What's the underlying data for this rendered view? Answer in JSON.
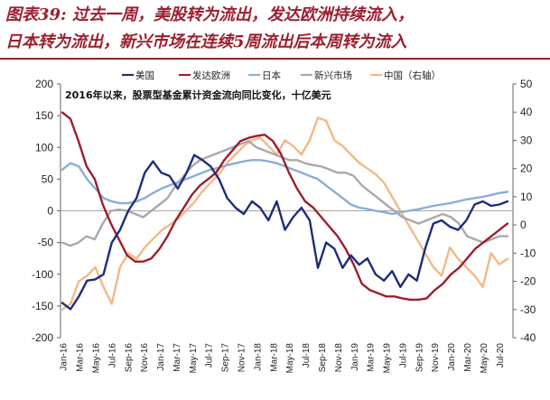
{
  "title": {
    "line1": "图表39: 过去一周，美股转为流出，发达欧洲持续流入，",
    "line2": "日本转为流出，新兴市场在连续5周流出后本周转为流入"
  },
  "colors": {
    "us": "#1f2d7a",
    "dev_europe": "#9c1f2e",
    "japan": "#8aaed4",
    "em": "#a9a9a9",
    "china": "#f4b885",
    "title": "#9c1f2e"
  },
  "chart_data": {
    "type": "line",
    "annotation": "2016年以来，股票型基金累计资金流向同比变化，十亿美元",
    "x_tick_labels": [
      "Jan-16",
      "Mar-16",
      "May-16",
      "Jul-16",
      "Sep-16",
      "Nov-16",
      "Jan-17",
      "Mar-17",
      "May-17",
      "Jul-17",
      "Sep-17",
      "Nov-17",
      "Jan-18",
      "Mar-18",
      "May-18",
      "Jul-18",
      "Sep-18",
      "Nov-18",
      "Jan-19",
      "Mar-19",
      "May-19",
      "Jul-19",
      "Sep-19",
      "Nov-19",
      "Jan-20",
      "Mar-20",
      "May-20",
      "Jul-20"
    ],
    "y_left": {
      "ylim": [
        -200,
        200
      ],
      "ticks": [
        200,
        150,
        100,
        50,
        0,
        -50,
        -100,
        -150,
        -200
      ]
    },
    "y_right": {
      "ylim": [
        -40,
        50
      ],
      "ticks": [
        50,
        40,
        30,
        20,
        10,
        0,
        -10,
        -20,
        -30,
        -40
      ]
    },
    "grid": false,
    "legend_position": "top",
    "series": [
      {
        "name": "美国",
        "axis": "left",
        "color": "#1f2d7a",
        "values": [
          -145,
          -155,
          -135,
          -110,
          -108,
          -100,
          -50,
          -30,
          0,
          20,
          60,
          78,
          60,
          55,
          35,
          58,
          88,
          80,
          70,
          50,
          20,
          5,
          -5,
          15,
          5,
          -15,
          15,
          -30,
          -10,
          5,
          -15,
          -90,
          -50,
          -60,
          -90,
          -70,
          -85,
          -75,
          -100,
          -110,
          -95,
          -120,
          -100,
          -110,
          -60,
          -20,
          -15,
          -25,
          -30,
          -15,
          10,
          15,
          8,
          10,
          15
        ]
      },
      {
        "name": "发达欧洲",
        "axis": "left",
        "color": "#9c1f2e",
        "values": [
          155,
          145,
          110,
          70,
          50,
          10,
          -20,
          -45,
          -70,
          -80,
          -80,
          -75,
          -60,
          -40,
          -15,
          5,
          25,
          40,
          50,
          60,
          80,
          95,
          110,
          115,
          118,
          120,
          110,
          90,
          60,
          35,
          15,
          5,
          -10,
          -25,
          -40,
          -60,
          -85,
          -115,
          -125,
          -130,
          -135,
          -135,
          -138,
          -140,
          -140,
          -138,
          -125,
          -115,
          -100,
          -90,
          -75,
          -60,
          -50,
          -40,
          -30,
          -20
        ]
      },
      {
        "name": "日本",
        "axis": "left",
        "color": "#8aaed4",
        "values": [
          65,
          75,
          70,
          50,
          35,
          20,
          15,
          12,
          12,
          15,
          20,
          28,
          35,
          40,
          45,
          50,
          55,
          60,
          65,
          68,
          72,
          75,
          78,
          80,
          80,
          78,
          75,
          70,
          65,
          60,
          55,
          50,
          40,
          30,
          20,
          10,
          5,
          3,
          0,
          -2,
          -5,
          -2,
          0,
          2,
          5,
          8,
          10,
          12,
          15,
          18,
          20,
          22,
          25,
          28,
          30
        ]
      },
      {
        "name": "新兴市场",
        "axis": "left",
        "color": "#a9a9a9",
        "values": [
          -50,
          -55,
          -50,
          -40,
          -45,
          -20,
          0,
          2,
          0,
          -5,
          -10,
          0,
          10,
          20,
          40,
          55,
          70,
          80,
          85,
          90,
          95,
          100,
          105,
          110,
          100,
          95,
          90,
          85,
          80,
          80,
          75,
          72,
          70,
          65,
          60,
          60,
          55,
          40,
          30,
          20,
          10,
          0,
          -10,
          -15,
          -20,
          -15,
          -10,
          -5,
          -10,
          -20,
          -40,
          -45,
          -50,
          -45,
          -40,
          -40
        ]
      },
      {
        "name": "中国（右轴）",
        "axis": "right",
        "color": "#f4b885",
        "values": [
          -30,
          -28,
          -20,
          -18,
          -15,
          -22,
          -28,
          -15,
          -10,
          -12,
          -8,
          -5,
          -2,
          0,
          2,
          5,
          8,
          12,
          15,
          18,
          22,
          25,
          28,
          30,
          31,
          28,
          25,
          30,
          28,
          25,
          30,
          38,
          37,
          30,
          28,
          25,
          22,
          20,
          18,
          15,
          10,
          5,
          0,
          -5,
          -10,
          -15,
          -18,
          -8,
          -12,
          -15,
          -18,
          -22,
          -10,
          -14,
          -12
        ]
      }
    ]
  }
}
